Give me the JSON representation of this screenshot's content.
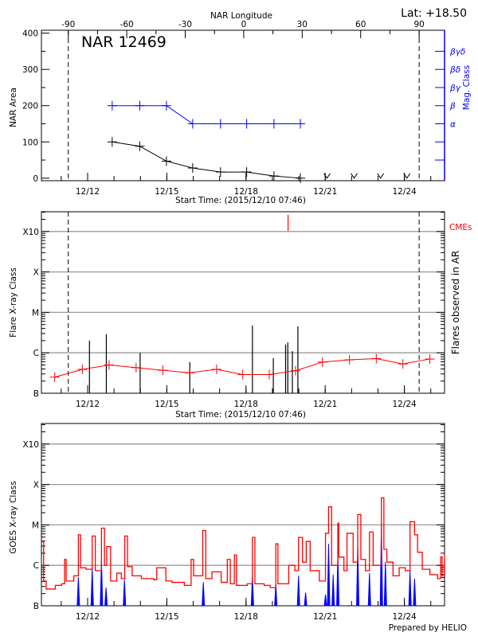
{
  "header": {
    "lat_label": "Lat: +18.50",
    "region_label": "NAR 12469",
    "footer": "Prepared by HELIO"
  },
  "colors": {
    "area": "#000000",
    "mag_class": "#0000ff",
    "flare_trend": "#ff0000",
    "cme": "#ff0000",
    "goes_long": "#ff0000",
    "goes_short": "#0000ff",
    "grid": "#999999"
  },
  "chart_data": [
    {
      "type": "line",
      "top_axis_label": "NAR Longitude",
      "top_ticks": [
        -90,
        -60,
        -30,
        0,
        30,
        60,
        90
      ],
      "xlabel": "Start Time: (2015/12/10 07:46)",
      "ylabel": "NAR Area",
      "y2label": "Mag. Class",
      "xlim": [
        "12/10 06:00",
        "12/25 12:30"
      ],
      "xticks": [
        "12/12",
        "12/15",
        "12/18",
        "12/21",
        "12/24"
      ],
      "ylim": [
        -7,
        408
      ],
      "yticks": [
        0,
        100,
        200,
        300,
        400
      ],
      "limb_times": [
        "12/11 06:25",
        "12/24 13:25"
      ],
      "area": [
        {
          "t": "12/12 22:20",
          "v": 100
        },
        {
          "t": "12/13 23:25",
          "v": 88
        },
        {
          "t": "12/14 23:40",
          "v": 47
        },
        {
          "t": "12/15 23:30",
          "v": 28
        },
        {
          "t": "12/17 00:50",
          "v": 17
        },
        {
          "t": "12/18 00:35",
          "v": 17
        },
        {
          "t": "12/19 01:25",
          "v": 6
        },
        {
          "t": "12/20 01:25",
          "v": 0
        }
      ],
      "no_data_times": [
        "12/21 01:40",
        "12/22 02:20",
        "12/23 02:15",
        "12/24 02:15"
      ],
      "mag_class_levels": [
        {
          "label": "α",
          "value": 150
        },
        {
          "label": "β",
          "value": 200
        },
        {
          "label": "βγ",
          "value": 250
        },
        {
          "label": "βδ",
          "value": 300
        },
        {
          "label": "βγδ",
          "value": 350
        }
      ],
      "mag_class_ticks": [
        50,
        100,
        150,
        200,
        250,
        300,
        350
      ],
      "mag_class": [
        {
          "t": "12/12 22:20",
          "c": "β"
        },
        {
          "t": "12/13 23:25",
          "c": "β"
        },
        {
          "t": "12/14 23:40",
          "c": "β"
        },
        {
          "t": "12/15 23:30",
          "c": "α"
        },
        {
          "t": "12/17 00:50",
          "c": "α"
        },
        {
          "t": "12/18 00:35",
          "c": "α"
        },
        {
          "t": "12/19 01:25",
          "c": "α"
        },
        {
          "t": "12/20 01:25",
          "c": "α"
        }
      ]
    },
    {
      "type": "line",
      "xlabel": "Start Time: (2015/12/10 07:46)",
      "ylabel": "Flare X-ray Class",
      "y2label": "Flares observed in AR",
      "cme_label": "CMEs",
      "xlim": [
        "12/10 06:00",
        "12/25 12:30"
      ],
      "xticks": [
        "12/12",
        "12/15",
        "12/18",
        "12/21",
        "12/24"
      ],
      "yscale": "log",
      "ylim": [
        "B1",
        "X32"
      ],
      "ytick_labels": [
        "B",
        "C",
        "M",
        "X",
        "X10"
      ],
      "grid": true,
      "limb_times": [
        "12/11 06:25",
        "12/24 13:25"
      ],
      "trend": [
        {
          "t": "12/10 18:05",
          "c": "B2.5"
        },
        {
          "t": "12/11 19:15",
          "c": "B3.9"
        },
        {
          "t": "12/12 19:30",
          "c": "B5.0"
        },
        {
          "t": "12/13 20:05",
          "c": "B4.3"
        },
        {
          "t": "12/14 20:25",
          "c": "B3.7"
        },
        {
          "t": "12/15 20:40",
          "c": "B3.2"
        },
        {
          "t": "12/16 21:15",
          "c": "B3.9"
        },
        {
          "t": "12/17 21:00",
          "c": "B2.9"
        },
        {
          "t": "12/18 21:10",
          "c": "B2.9"
        },
        {
          "t": "12/19 21:00",
          "c": "B3.6"
        },
        {
          "t": "12/20 21:30",
          "c": "B5.9"
        },
        {
          "t": "12/21 22:05",
          "c": "B6.7"
        },
        {
          "t": "12/22 22:25",
          "c": "B7.2"
        },
        {
          "t": "12/23 22:40",
          "c": "B5.3"
        },
        {
          "t": "12/24 23:10",
          "c": "B7.0"
        }
      ],
      "flares": [
        {
          "t": "12/12 01:40",
          "c": "C2.0"
        },
        {
          "t": "12/12 17:00",
          "c": "C2.9"
        },
        {
          "t": "12/13 23:45",
          "c": "C1.0"
        },
        {
          "t": "12/15 20:55",
          "c": "B5.9"
        },
        {
          "t": "12/18 05:50",
          "c": "C4.7"
        },
        {
          "t": "12/19 00:50",
          "c": "B7.4"
        },
        {
          "t": "12/19 12:00",
          "c": "C1.6"
        },
        {
          "t": "12/19 14:00",
          "c": "C1.8"
        },
        {
          "t": "12/19 18:10",
          "c": "C1.1"
        },
        {
          "t": "12/19 23:10",
          "c": "C4.5"
        }
      ],
      "cmes": [
        "12/19 14:15"
      ]
    },
    {
      "type": "line",
      "ylabel": "GOES X-ray Class",
      "xlim": [
        "12/10 06:00",
        "12/25 12:30"
      ],
      "xticks": [
        "12/12",
        "12/15",
        "12/18",
        "12/21",
        "12/24"
      ],
      "yscale": "log",
      "ylim": [
        "B1",
        "X32"
      ],
      "ytick_labels": [
        "B",
        "C",
        "M",
        "X",
        "X10"
      ],
      "grid": true,
      "long_channel": [
        [
          "12/10 06:10",
          "C3.9"
        ],
        [
          "12/10 08:00",
          "B4.1"
        ],
        [
          "12/10 10:20",
          "B2.6"
        ],
        [
          "12/10 18:40",
          "B3.2"
        ],
        [
          "12/11 00:20",
          "B3.5"
        ],
        [
          "12/11 03:05",
          "C1.4"
        ],
        [
          "12/11 04:30",
          "B4.1"
        ],
        [
          "12/11 11:25",
          "B5.5"
        ],
        [
          "12/11 15:35",
          "C5.7"
        ],
        [
          "12/11 17:35",
          "B8.7"
        ],
        [
          "12/11 22:35",
          "B8.0"
        ],
        [
          "12/12 04:10",
          "C5.3"
        ],
        [
          "12/12 07:00",
          "B7.4"
        ],
        [
          "12/12 12:35",
          "C8.3"
        ],
        [
          "12/12 15:20",
          "C1.0"
        ],
        [
          "12/12 17:20",
          "C2.9"
        ],
        [
          "12/12 20:55",
          "B4.1"
        ],
        [
          "12/13 02:30",
          "B6.4"
        ],
        [
          "12/13 06:40",
          "B4.7"
        ],
        [
          "12/13 09:45",
          "C5.3"
        ],
        [
          "12/13 12:15",
          "B9.3"
        ],
        [
          "12/13 16:30",
          "B5.5"
        ],
        [
          "12/14 00:50",
          "B4.7"
        ],
        [
          "12/14 12:00",
          "B4.4"
        ],
        [
          "12/14 14:50",
          "B8.7"
        ],
        [
          "12/14 23:10",
          "B4.1"
        ],
        [
          "12/15 04:45",
          "B3.8"
        ],
        [
          "12/15 15:55",
          "B3.2"
        ],
        [
          "12/15 22:05",
          "C1.4"
        ],
        [
          "12/16 00:20",
          "B5.5"
        ],
        [
          "12/16 08:40",
          "C7.2"
        ],
        [
          "12/16 11:25",
          "B4.7"
        ],
        [
          "12/16 17:00",
          "B6.9"
        ],
        [
          "12/17 01:25",
          "B3.8"
        ],
        [
          "12/17 07:00",
          "C1.4"
        ],
        [
          "12/17 09:45",
          "B3.5"
        ],
        [
          "12/17 13:25",
          "C1.8"
        ],
        [
          "12/17 15:20",
          "B3.2"
        ],
        [
          "12/18 01:10",
          "B3.5"
        ],
        [
          "12/18 05:50",
          "C4.9"
        ],
        [
          "12/18 08:05",
          "B3.5"
        ],
        [
          "12/18 16:30",
          "B3.2"
        ],
        [
          "12/18 22:05",
          "B2.8"
        ],
        [
          "12/19 03:05",
          "C3.4"
        ],
        [
          "12/19 05:00",
          "B3.5"
        ],
        [
          "12/19 14:50",
          "C1.0"
        ],
        [
          "12/19 20:25",
          "B7.4"
        ],
        [
          "12/19 23:45",
          "C4.9"
        ],
        [
          "12/20 03:20",
          "C1.2"
        ],
        [
          "12/20 06:45",
          "C3.9"
        ],
        [
          "12/20 10:20",
          "B7.4"
        ],
        [
          "12/20 18:40",
          "B4.1"
        ],
        [
          "12/21 00:15",
          "C6.2"
        ],
        [
          "12/21 03:05",
          "M2.8"
        ],
        [
          "12/21 05:50",
          "C1.0"
        ],
        [
          "12/21 11:30",
          "M1.1"
        ],
        [
          "12/21 12:20",
          "C1.6"
        ],
        [
          "12/21 17:00",
          "B7.4"
        ],
        [
          "12/21 19:50",
          "C6.2"
        ],
        [
          "12/22 01:25",
          "C1.2"
        ],
        [
          "12/22 05:35",
          "M1.8"
        ],
        [
          "12/22 08:25",
          "C1.4"
        ],
        [
          "12/22 12:35",
          "B7.4"
        ],
        [
          "12/22 16:15",
          "C6.7"
        ],
        [
          "12/22 19:35",
          "C1.0"
        ],
        [
          "12/23 03:05",
          "M4.7"
        ],
        [
          "12/23 05:20",
          "C2.5"
        ],
        [
          "12/23 08:05",
          "C1.2"
        ],
        [
          "12/23 13:40",
          "B5.5"
        ],
        [
          "12/23 19:15",
          "B8.7"
        ],
        [
          "12/24 00:50",
          "B7.4"
        ],
        [
          "12/24 05:05",
          "M1.2"
        ],
        [
          "12/24 09:15",
          "C5.7"
        ],
        [
          "12/24 12:00",
          "C2.1"
        ],
        [
          "12/24 16:15",
          "B8.0"
        ],
        [
          "12/24 23:10",
          "B5.9"
        ],
        [
          "12/25 06:10",
          "B4.7"
        ],
        [
          "12/25 09:00",
          "C1.6"
        ],
        [
          "12/25 10:20",
          "B5.5"
        ],
        [
          "12/25 12:30",
          "C2.0"
        ]
      ],
      "short_channel_peaks": [
        [
          "12/11 15:35",
          "B5.1"
        ],
        [
          "12/12 04:10",
          "B8.7"
        ],
        [
          "12/12 12:35",
          "C1.4"
        ],
        [
          "12/12 16:45",
          "B2.8"
        ],
        [
          "12/13 09:30",
          "B4.4"
        ],
        [
          "12/16 09:10",
          "B3.8"
        ],
        [
          "12/18 05:50",
          "B5.9"
        ],
        [
          "12/19 03:05",
          "B3.5"
        ],
        [
          "12/19 23:45",
          "B5.5"
        ],
        [
          "12/20 06:10",
          "B2.1"
        ],
        [
          "12/21 00:15",
          "B1.9"
        ],
        [
          "12/21 03:05",
          "C3.4"
        ],
        [
          "12/21 07:15",
          "B5.9"
        ],
        [
          "12/21 11:30",
          "C1.8"
        ],
        [
          "12/22 05:35",
          "C3.1"
        ],
        [
          "12/22 16:15",
          "B6.4"
        ],
        [
          "12/23 03:05",
          "M1.1"
        ],
        [
          "12/23 06:45",
          "C1.2"
        ],
        [
          "12/24 05:05",
          "B7.4"
        ],
        [
          "12/24 09:15",
          "B4.7"
        ]
      ]
    }
  ]
}
